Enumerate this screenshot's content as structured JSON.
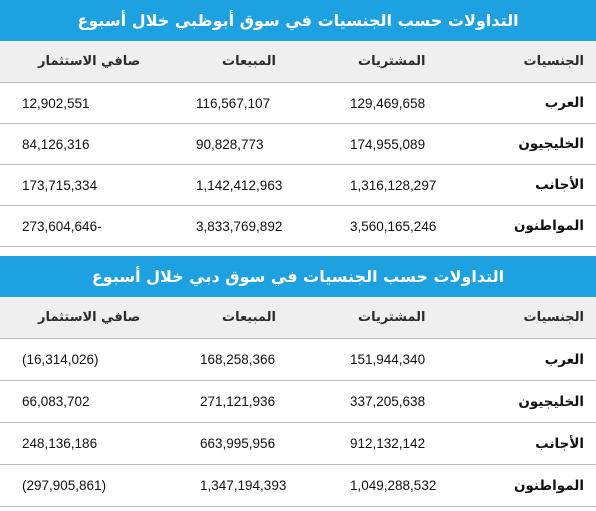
{
  "tables": [
    {
      "title": "التداولات حسب الجنسيات في سوق أبوظبي خلال أسبوع",
      "headers": {
        "nationality": "الجنسيات",
        "purchases": "المشتريات",
        "sales": "المبيعات",
        "net": "صافي الاستثمار"
      },
      "rows": [
        {
          "nationality": "العرب",
          "purchases": "129,469,658",
          "sales": "116,567,107",
          "net": "12,902,551"
        },
        {
          "nationality": "الخليجيون",
          "purchases": "174,955,089",
          "sales": "90,828,773",
          "net": "84,126,316"
        },
        {
          "nationality": "الأجانب",
          "purchases": "1,316,128,297",
          "sales": "1,142,412,963",
          "net": "173,715,334"
        },
        {
          "nationality": "المواطنون",
          "purchases": "3,560,165,246",
          "sales": "3,833,769,892",
          "net": "273,604,646-"
        }
      ]
    },
    {
      "title": "التداولات حسب الجنسيات في سوق دبي خلال أسبوع",
      "headers": {
        "nationality": "الجنسيات",
        "purchases": "المشتريات",
        "sales": "المبيعات",
        "net": "صافي الاستثمار"
      },
      "rows": [
        {
          "nationality": "العرب",
          "purchases": "151,944,340",
          "sales": "168,258,366",
          "net": "(16,314,026)"
        },
        {
          "nationality": "الخليجيون",
          "purchases": "337,205,638",
          "sales": "271,121,936",
          "net": "66,083,702"
        },
        {
          "nationality": "الأجانب",
          "purchases": "912,132,142",
          "sales": "663,995,956",
          "net": "248,136,186"
        },
        {
          "nationality": "المواطنون",
          "purchases": "1,049,288,532",
          "sales": "1,347,194,393",
          "net": "(297,905,861)"
        }
      ]
    }
  ],
  "colors": {
    "title_bar": "#1da1e0",
    "header_row": "#efefef",
    "divider": "#bcbcbc"
  }
}
